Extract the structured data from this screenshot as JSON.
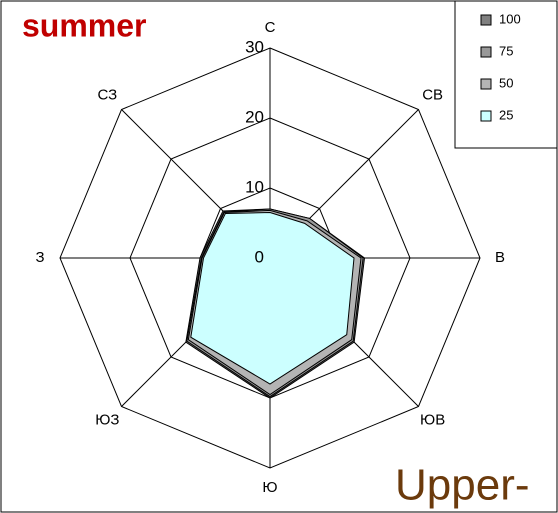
{
  "chart_data": {
    "type": "radar",
    "title": "summer",
    "annotation": "Upper-",
    "categories": [
      "С",
      "СВ",
      "В",
      "ЮВ",
      "Ю",
      "ЮЗ",
      "З",
      "СЗ"
    ],
    "ylim": [
      0,
      30
    ],
    "yticks": [
      0,
      10,
      20,
      30
    ],
    "grid": true,
    "legend": "top-right",
    "series": [
      {
        "name": "100",
        "color": "#808080",
        "values": [
          7,
          8,
          13.5,
          17,
          20,
          17,
          10,
          9.5
        ]
      },
      {
        "name": "75",
        "color": "#999999",
        "values": [
          7,
          8,
          13.3,
          16.8,
          19.8,
          16.8,
          9.8,
          9.3
        ]
      },
      {
        "name": "50",
        "color": "#b4b4b4",
        "values": [
          6.8,
          7.5,
          13,
          16.5,
          19.5,
          16.5,
          9.7,
          9.2
        ]
      },
      {
        "name": "25",
        "color": "#ccffff",
        "values": [
          6.5,
          7,
          12,
          15.5,
          18,
          16,
          9.5,
          9
        ]
      }
    ]
  }
}
